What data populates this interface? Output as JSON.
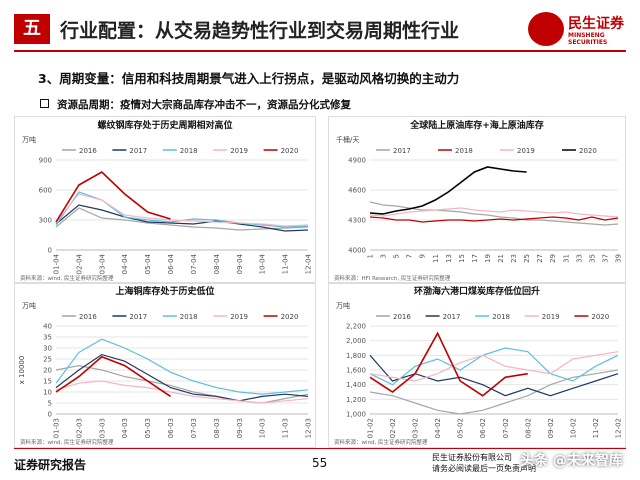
{
  "header": {
    "number": "五",
    "title": "行业配置：从交易趋势性行业到交易周期性行业",
    "logo_cn": "民生证券",
    "logo_en": "MINSHENG SECURITIES"
  },
  "subtitle": "3、周期变量：信用和科技周期景气进入上行拐点，是驱动风格切换的主动力",
  "bullet": "资源品周期：疫情对大宗商品库存冲击不一，资源品分化式修复",
  "chart_data": [
    {
      "type": "line",
      "title": "螺纹钢库存处于历史周期相对高位",
      "unit": "万吨",
      "source": "资料来源：wind, 民生证券研究院整理",
      "categories": [
        "01-04",
        "02-04",
        "03-04",
        "04-04",
        "05-04",
        "06-04",
        "07-04",
        "08-04",
        "09-04",
        "10-04",
        "11-04",
        "12-04"
      ],
      "ylim": [
        0,
        900
      ],
      "yticks": [
        0,
        300,
        600,
        900
      ],
      "series": [
        {
          "name": "2016",
          "color": "#a6a6a6",
          "values": [
            230,
            420,
            320,
            300,
            270,
            250,
            230,
            220,
            200,
            210,
            220,
            230
          ]
        },
        {
          "name": "2017",
          "color": "#1f3864",
          "values": [
            260,
            450,
            400,
            330,
            280,
            270,
            260,
            290,
            260,
            230,
            190,
            200
          ]
        },
        {
          "name": "2018",
          "color": "#5bc0de",
          "values": [
            250,
            580,
            500,
            330,
            300,
            280,
            310,
            300,
            270,
            250,
            230,
            240
          ]
        },
        {
          "name": "2019",
          "color": "#f4b6c2",
          "values": [
            280,
            560,
            500,
            350,
            320,
            300,
            290,
            280,
            270,
            260,
            240,
            250
          ]
        },
        {
          "name": "2020",
          "color": "#c00000",
          "values": [
            280,
            650,
            780,
            560,
            380,
            310,
            null,
            null,
            null,
            null,
            null,
            null
          ]
        }
      ]
    },
    {
      "type": "line",
      "title": "全球陆上原油库存+海上原油库存",
      "unit": "千桶/天",
      "source": "资料来源：HFI Research, 民生证券研究院整理",
      "categories": [
        "1",
        "3",
        "5",
        "7",
        "9",
        "11",
        "13",
        "15",
        "17",
        "19",
        "21",
        "23",
        "25",
        "27",
        "29",
        "31",
        "33",
        "35",
        "37",
        "39"
      ],
      "ylim": [
        4000,
        4900
      ],
      "yticks": [
        4000,
        4300,
        4600,
        4900
      ],
      "series": [
        {
          "name": "2017",
          "color": "#a6a6a6",
          "values": [
            4480,
            4450,
            4440,
            4420,
            4400,
            4400,
            4390,
            4380,
            4360,
            4350,
            4330,
            4320,
            4300,
            4300,
            4290,
            4280,
            4270,
            4260,
            4250,
            4260
          ]
        },
        {
          "name": "2018",
          "color": "#c00000",
          "values": [
            4330,
            4320,
            4300,
            4300,
            4280,
            4290,
            4300,
            4300,
            4290,
            4300,
            4310,
            4300,
            4310,
            4320,
            4330,
            4320,
            4300,
            4330,
            4300,
            4320
          ]
        },
        {
          "name": "2019",
          "color": "#f4b6c2",
          "values": [
            4350,
            4340,
            4360,
            4380,
            4390,
            4400,
            4410,
            4420,
            4400,
            4390,
            4380,
            4400,
            4390,
            4380,
            4370,
            4380,
            4360,
            4350,
            4340,
            4330
          ]
        },
        {
          "name": "2020",
          "color": "#000000",
          "values": [
            4370,
            4360,
            4390,
            4410,
            4440,
            4500,
            4580,
            4680,
            4780,
            4830,
            4810,
            4790,
            4780,
            null,
            null,
            null,
            null,
            null,
            null,
            null
          ]
        }
      ]
    },
    {
      "type": "line",
      "title": "上海铜库存处于历史低位",
      "unit": "万吨",
      "ylabel": "x 10000",
      "source": "资料来源：wind, 民生证券研究院整理",
      "categories": [
        "01-03",
        "02-03",
        "03-03",
        "04-03",
        "05-03",
        "06-03",
        "07-03",
        "08-03",
        "09-03",
        "10-03",
        "11-03",
        "12-03"
      ],
      "ylim": [
        0,
        40
      ],
      "yticks": [
        0,
        5,
        10,
        15,
        20,
        25,
        30,
        35,
        40
      ],
      "series": [
        {
          "name": "2016",
          "color": "#a6a6a6",
          "values": [
            20,
            22,
            20,
            17,
            15,
            13,
            10,
            8,
            6,
            5,
            7,
            9
          ]
        },
        {
          "name": "2017",
          "color": "#1f3864",
          "values": [
            12,
            20,
            27,
            24,
            18,
            12,
            9,
            8,
            6,
            8,
            9,
            8
          ]
        },
        {
          "name": "2018",
          "color": "#5bc0de",
          "values": [
            14,
            28,
            34,
            30,
            25,
            19,
            15,
            12,
            10,
            9,
            10,
            11
          ]
        },
        {
          "name": "2019",
          "color": "#f4b6c2",
          "values": [
            11,
            14,
            15,
            13,
            12,
            10,
            8,
            7,
            6,
            5,
            6,
            7
          ]
        },
        {
          "name": "2020",
          "color": "#c00000",
          "values": [
            10,
            17,
            26,
            22,
            15,
            8,
            null,
            null,
            null,
            null,
            null,
            null
          ]
        }
      ]
    },
    {
      "type": "line",
      "title": "环渤海六港口煤炭库存低位回升",
      "unit": "万吨",
      "source": "资料来源：wind, 民生证券研究院整理",
      "categories": [
        "01-02",
        "02-02",
        "03-02",
        "04-02",
        "05-02",
        "06-02",
        "07-02",
        "08-02",
        "09-02",
        "10-02",
        "11-02",
        "12-02"
      ],
      "ylim": [
        1000,
        2200
      ],
      "yticks": [
        {
          "value": 1000,
          "label": "1,000"
        },
        {
          "value": 1200,
          "label": "1,200"
        },
        {
          "value": 1400,
          "label": "1,400"
        },
        {
          "value": 1600,
          "label": "1,600"
        },
        {
          "value": 1800,
          "label": "1,800"
        },
        {
          "value": 2000,
          "label": "2,000"
        },
        {
          "value": 2200,
          "label": "2,200"
        }
      ],
      "series": [
        {
          "name": "2016",
          "color": "#a6a6a6",
          "values": [
            1300,
            1250,
            1150,
            1050,
            1000,
            1050,
            1150,
            1250,
            1400,
            1500,
            1550,
            1600
          ]
        },
        {
          "name": "2017",
          "color": "#1f3864",
          "values": [
            1800,
            1450,
            1550,
            1450,
            1500,
            1400,
            1250,
            1350,
            1250,
            1350,
            1450,
            1550
          ]
        },
        {
          "name": "2018",
          "color": "#5bc0de",
          "values": [
            1550,
            1400,
            1650,
            1750,
            1600,
            1800,
            1900,
            1850,
            1550,
            1450,
            1650,
            1800
          ]
        },
        {
          "name": "2019",
          "color": "#f4b6c2",
          "values": [
            1550,
            1500,
            1450,
            1550,
            1700,
            1800,
            1650,
            1600,
            1550,
            1750,
            1800,
            1850
          ]
        },
        {
          "name": "2020",
          "color": "#c00000",
          "values": [
            1500,
            1300,
            1550,
            2100,
            1450,
            1250,
            1500,
            1550,
            null,
            null,
            null,
            null
          ]
        }
      ]
    }
  ],
  "footer": {
    "left": "证券研究报告",
    "page": "55",
    "company": "民生证券股份有限公司",
    "disclaimer": "请务必阅读最后一页免责声明",
    "watermark": "头条 @未来智库"
  }
}
